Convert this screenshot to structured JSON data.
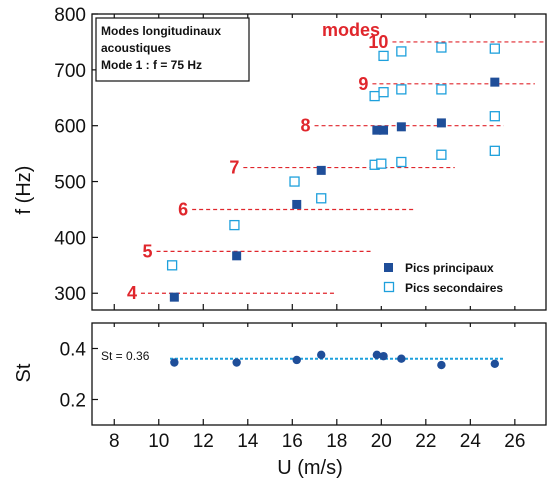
{
  "colors": {
    "primary": "#1f4e99",
    "secondary": "#1ea0dc",
    "mode_line": "#e0262c",
    "st_line": "#1ea0dc",
    "st_marker": "#1f4e99"
  },
  "annotation": {
    "line1": "Modes longitudinaux",
    "line2": "acoustiques",
    "line3": "Mode 1 : f = 75 Hz"
  },
  "modes_title": "modes",
  "chart_data": [
    {
      "type": "scatter",
      "xlabel": "U (m/s)",
      "ylabel": "f (Hz)",
      "xlim": [
        7,
        27.4
      ],
      "ylim": [
        270,
        800
      ],
      "xticks": [
        8,
        10,
        12,
        14,
        16,
        18,
        20,
        22,
        24,
        26
      ],
      "yticks": [
        300,
        400,
        500,
        600,
        700,
        800
      ],
      "legend": {
        "position": "bottom-right"
      },
      "series": [
        {
          "name": "Pics principaux",
          "marker": "filled-square",
          "points": [
            {
              "x": 10.7,
              "y": 293
            },
            {
              "x": 13.5,
              "y": 367
            },
            {
              "x": 16.2,
              "y": 459
            },
            {
              "x": 17.3,
              "y": 520
            },
            {
              "x": 19.8,
              "y": 592
            },
            {
              "x": 20.1,
              "y": 592
            },
            {
              "x": 20.9,
              "y": 598
            },
            {
              "x": 22.7,
              "y": 605
            },
            {
              "x": 25.1,
              "y": 678
            }
          ]
        },
        {
          "name": "Pics secondaires",
          "marker": "open-square",
          "points": [
            {
              "x": 10.6,
              "y": 350
            },
            {
              "x": 13.4,
              "y": 422
            },
            {
              "x": 16.1,
              "y": 500
            },
            {
              "x": 17.3,
              "y": 470
            },
            {
              "x": 19.7,
              "y": 530
            },
            {
              "x": 20.0,
              "y": 532
            },
            {
              "x": 19.7,
              "y": 653
            },
            {
              "x": 20.1,
              "y": 660
            },
            {
              "x": 20.1,
              "y": 725
            },
            {
              "x": 20.9,
              "y": 733
            },
            {
              "x": 20.9,
              "y": 535
            },
            {
              "x": 20.9,
              "y": 665
            },
            {
              "x": 22.7,
              "y": 548
            },
            {
              "x": 22.7,
              "y": 665
            },
            {
              "x": 22.7,
              "y": 740
            },
            {
              "x": 25.1,
              "y": 555
            },
            {
              "x": 25.1,
              "y": 617
            },
            {
              "x": 25.1,
              "y": 738
            }
          ]
        }
      ],
      "modes": [
        {
          "label": "4",
          "f": 300,
          "x_start": 9.2,
          "x_end": 17.9
        },
        {
          "label": "5",
          "f": 375,
          "x_start": 9.9,
          "x_end": 19.6
        },
        {
          "label": "6",
          "f": 450,
          "x_start": 11.5,
          "x_end": 21.5
        },
        {
          "label": "7",
          "f": 525,
          "x_start": 13.8,
          "x_end": 23.3
        },
        {
          "label": "8",
          "f": 600,
          "x_start": 17.0,
          "x_end": 25.5
        },
        {
          "label": "9",
          "f": 675,
          "x_start": 19.6,
          "x_end": 26.9
        },
        {
          "label": "10",
          "f": 750,
          "x_start": 20.5,
          "x_end": 27.4
        }
      ]
    },
    {
      "type": "scatter",
      "xlabel": "U (m/s)",
      "ylabel": "St",
      "xlim": [
        7,
        27.4
      ],
      "ylim": [
        0.1,
        0.5
      ],
      "xticks": [
        8,
        10,
        12,
        14,
        16,
        18,
        20,
        22,
        24,
        26
      ],
      "yticks": [
        0.2,
        0.4
      ],
      "reference_line": {
        "label": "St = 0.36",
        "value": 0.36
      },
      "series": [
        {
          "marker": "filled-circle",
          "points": [
            {
              "x": 10.7,
              "y": 0.345
            },
            {
              "x": 13.5,
              "y": 0.345
            },
            {
              "x": 16.2,
              "y": 0.355
            },
            {
              "x": 17.3,
              "y": 0.375
            },
            {
              "x": 19.8,
              "y": 0.375
            },
            {
              "x": 20.1,
              "y": 0.37
            },
            {
              "x": 20.9,
              "y": 0.36
            },
            {
              "x": 22.7,
              "y": 0.335
            },
            {
              "x": 25.1,
              "y": 0.34
            }
          ]
        }
      ]
    }
  ]
}
